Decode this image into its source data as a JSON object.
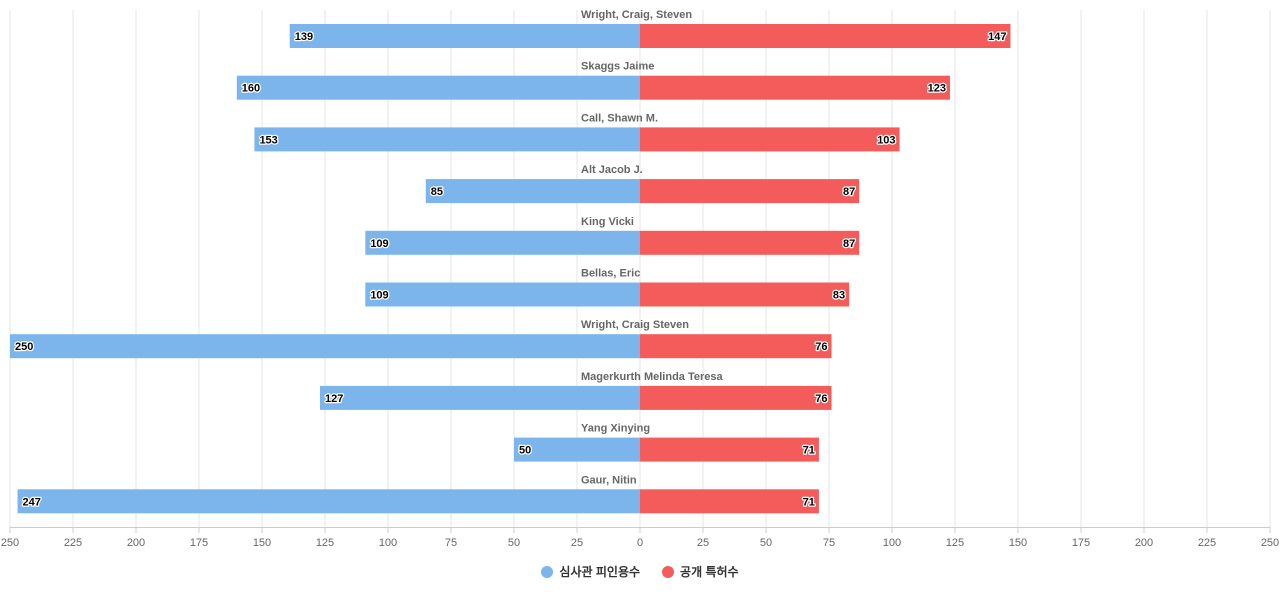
{
  "chart_data": {
    "type": "bar",
    "orientation": "horizontal-diverging",
    "categories": [
      "Wright, Craig, Steven",
      "Skaggs Jaime",
      "Call, Shawn M.",
      "Alt Jacob J.",
      "King Vicki",
      "Bellas, Eric",
      "Wright, Craig Steven",
      "Magerkurth Melinda Teresa",
      "Yang Xinying",
      "Gaur, Nitin"
    ],
    "series": [
      {
        "name": "심사관 피인용수",
        "color": "#7cb5ec",
        "side": "left",
        "values": [
          139,
          160,
          153,
          85,
          109,
          109,
          250,
          127,
          50,
          247
        ]
      },
      {
        "name": "공개 특허수",
        "color": "#f45b5b",
        "side": "right",
        "values": [
          147,
          123,
          103,
          87,
          87,
          83,
          76,
          76,
          71,
          71
        ]
      }
    ],
    "xlim": [
      -250,
      250
    ],
    "xticks": [
      250,
      225,
      200,
      175,
      150,
      125,
      100,
      75,
      50,
      25,
      0,
      25,
      50,
      75,
      100,
      125,
      150,
      175,
      200,
      225,
      250
    ],
    "grid": true,
    "legend": "bottom-center"
  }
}
